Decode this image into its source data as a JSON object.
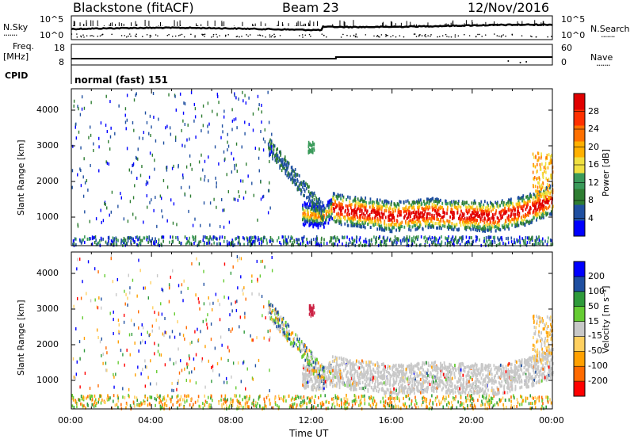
{
  "header": {
    "radar": "Blackstone (fitACF)",
    "beam": "Beam 23",
    "date": "12/Nov/2016"
  },
  "labels": {
    "nsky": "N.Sky",
    "nsearch": "N.Search",
    "freq": "Freq.",
    "freq_unit": "[MHz]",
    "nave": "Nave",
    "cpid": "CPID",
    "cpid_value": "normal (fast) 151",
    "dots": "·······",
    "noise_ticks": [
      "10^5",
      "10^0"
    ],
    "freq_ticks": [
      "18",
      "8"
    ],
    "nave_ticks": [
      "60",
      "0"
    ]
  },
  "colors": {
    "power_scale": [
      "#0000ff",
      "#1f4fa0",
      "#2e7d32",
      "#3a9a5a",
      "#f0e040",
      "#ffb000",
      "#ff7000",
      "#ff3000",
      "#e00000"
    ],
    "velocity_scale": [
      "#ff0000",
      "#ff6a00",
      "#ffa000",
      "#ffd060",
      "#c8c8c8",
      "#66cc33",
      "#2e9a3a",
      "#1f4fa0",
      "#0000ff"
    ]
  },
  "chart_data": [
    {
      "type": "heatmap",
      "name": "power",
      "xlabel": "Time UT",
      "ylabel": "Slant Range [km]",
      "colorbar_label": "Power [dB]",
      "colorbar_ticks": [
        "28",
        "24",
        "20",
        "16",
        "12",
        "8",
        "4"
      ],
      "xlim_hours": [
        0,
        24
      ],
      "ylim_km": [
        200,
        4600
      ],
      "x_ticks": [
        "00:00",
        "04:00",
        "08:00",
        "12:00",
        "16:00",
        "20:00",
        "00:00"
      ],
      "y_ticks": [
        "1000",
        "2000",
        "3000",
        "4000"
      ],
      "y_tick_values": [
        1000,
        2000,
        3000,
        4000
      ],
      "main_band": {
        "description": "ionospheric scatter band",
        "time_h": [
          11.5,
          12.5,
          13,
          14,
          15,
          16,
          17,
          18,
          19,
          20,
          21,
          22,
          23,
          24
        ],
        "center_km": [
          1100,
          1000,
          1250,
          1150,
          1100,
          1000,
          1050,
          1100,
          1050,
          1050,
          1000,
          1100,
          1250,
          1500
        ],
        "peak_power_db": [
          12,
          14,
          26,
          28,
          28,
          28,
          26,
          28,
          28,
          26,
          26,
          24,
          22,
          18
        ]
      },
      "ground_scatter": {
        "range_km": [
          200,
          450
        ],
        "time_h": [
          0,
          24
        ]
      }
    },
    {
      "type": "heatmap",
      "name": "velocity",
      "xlabel": "Time UT",
      "ylabel": "Slant Range [km]",
      "colorbar_label": "Velocity [m s⁻¹]",
      "colorbar_ticks": [
        "200",
        "100",
        "50",
        "15",
        "-15",
        "-50",
        "-100",
        "-200"
      ],
      "xlim_hours": [
        0,
        24
      ],
      "ylim_km": [
        200,
        4600
      ],
      "x_ticks": [
        "00:00",
        "04:00",
        "08:00",
        "12:00",
        "16:00",
        "20:00",
        "00:00"
      ],
      "y_ticks": [
        "1000",
        "2000",
        "3000",
        "4000"
      ],
      "y_tick_values": [
        1000,
        2000,
        3000,
        4000
      ]
    }
  ]
}
